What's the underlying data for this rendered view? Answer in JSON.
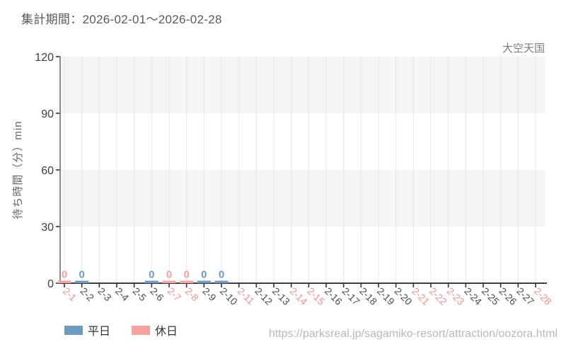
{
  "page": {
    "title": "集計期間：2026-02-01～2026-02-28",
    "attraction_label": "大空天国",
    "source_url": "https://parksreal.jp/sagamiko-resort/attraction/oozora.html"
  },
  "colors": {
    "weekday": "#6d9ac3",
    "holiday": "#f9a0a0",
    "weekday_tick_label": "#4d4d4d",
    "holiday_tick_label": "#f98f8f",
    "axis_line": "#3f3f3f",
    "spine": "#666666",
    "tick_mark": "#333333",
    "y_tick_label": "#3d3d3d",
    "band_gray": "#f5f5f5",
    "band_white": "#ffffff",
    "gridline": "#e7e7e7",
    "ylabel_text": "#666666"
  },
  "legend": {
    "items": [
      {
        "label": "平日",
        "color_key": "weekday"
      },
      {
        "label": "休日",
        "color_key": "holiday"
      }
    ]
  },
  "chart_data": {
    "type": "bar",
    "title": "集計期間：2026-02-01～2026-02-28",
    "ylabel": "待ち時間（分）min",
    "xlabel": "",
    "ylim": [
      0,
      120
    ],
    "yticks": [
      0,
      30,
      60,
      90,
      120
    ],
    "grid": "vertical",
    "legend_position": "bottom-left",
    "categories": [
      "2-1",
      "2-2",
      "2-3",
      "2-4",
      "2-5",
      "2-6",
      "2-7",
      "2-8",
      "2-9",
      "2-10",
      "2-11",
      "2-12",
      "2-13",
      "2-14",
      "2-15",
      "2-16",
      "2-17",
      "2-18",
      "2-19",
      "2-20",
      "2-21",
      "2-22",
      "2-23",
      "2-24",
      "2-25",
      "2-26",
      "2-27",
      "2-28"
    ],
    "holiday_categories": [
      "2-1",
      "2-7",
      "2-8",
      "2-11",
      "2-14",
      "2-15",
      "2-21",
      "2-22",
      "2-23",
      "2-28"
    ],
    "series": [
      {
        "name": "平日",
        "color_key": "weekday",
        "values": [
          null,
          0,
          null,
          null,
          null,
          0,
          null,
          null,
          0,
          0,
          null,
          null,
          null,
          null,
          null,
          null,
          null,
          null,
          null,
          null,
          null,
          null,
          null,
          null,
          null,
          null,
          null,
          null
        ]
      },
      {
        "name": "休日",
        "color_key": "holiday",
        "values": [
          0,
          null,
          null,
          null,
          null,
          null,
          0,
          0,
          null,
          null,
          null,
          null,
          null,
          null,
          null,
          null,
          null,
          null,
          null,
          null,
          null,
          null,
          null,
          null,
          null,
          null,
          null,
          null
        ]
      }
    ],
    "bar_value_labels_shown": true
  }
}
